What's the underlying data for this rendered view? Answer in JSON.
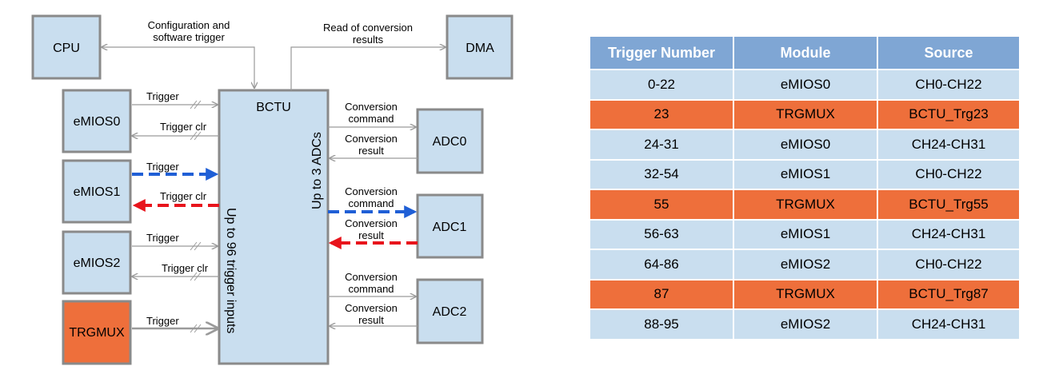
{
  "diagram": {
    "blocks": {
      "cpu": "CPU",
      "dma": "DMA",
      "emios0": "eMIOS0",
      "emios1": "eMIOS1",
      "emios2": "eMIOS2",
      "trgmux": "TRGMUX",
      "bctu": "BCTU",
      "adc0": "ADC0",
      "adc1": "ADC1",
      "adc2": "ADC2"
    },
    "labels": {
      "config_line1": "Configuration and",
      "config_line2": "software trigger",
      "read_line1": "Read of conversion",
      "read_line2": "results",
      "trigger": "Trigger",
      "trigger_clr": "Trigger clr",
      "conversion": "Conversion",
      "command": "command",
      "result": "result",
      "up_to_96": "Up to 96 trigger inputs",
      "up_to_3": "Up to 3 ADCs"
    },
    "colors": {
      "block_fill": "#c9deef",
      "highlight_fill": "#ee6f3b",
      "highlight_path_blue": "#1f5fd6",
      "highlight_path_red": "#e8141c"
    }
  },
  "table": {
    "headers": [
      "Trigger Number",
      "Module",
      "Source"
    ],
    "rows": [
      {
        "trigger": "0-22",
        "module": "eMIOS0",
        "source": "CH0-CH22",
        "highlight": false
      },
      {
        "trigger": "23",
        "module": "TRGMUX",
        "source": "BCTU_Trg23",
        "highlight": true
      },
      {
        "trigger": "24-31",
        "module": "eMIOS0",
        "source": "CH24-CH31",
        "highlight": false
      },
      {
        "trigger": "32-54",
        "module": "eMIOS1",
        "source": "CH0-CH22",
        "highlight": false
      },
      {
        "trigger": "55",
        "module": "TRGMUX",
        "source": "BCTU_Trg55",
        "highlight": true
      },
      {
        "trigger": "56-63",
        "module": "eMIOS1",
        "source": "CH24-CH31",
        "highlight": false
      },
      {
        "trigger": "64-86",
        "module": "eMIOS2",
        "source": "CH0-CH22",
        "highlight": false
      },
      {
        "trigger": "87",
        "module": "TRGMUX",
        "source": "BCTU_Trg87",
        "highlight": true
      },
      {
        "trigger": "88-95",
        "module": "eMIOS2",
        "source": "CH24-CH31",
        "highlight": false
      }
    ],
    "colors": {
      "header_fill": "#7fa6d4",
      "row_fill": "#c9deef",
      "highlight_fill": "#ee6f3b"
    }
  }
}
